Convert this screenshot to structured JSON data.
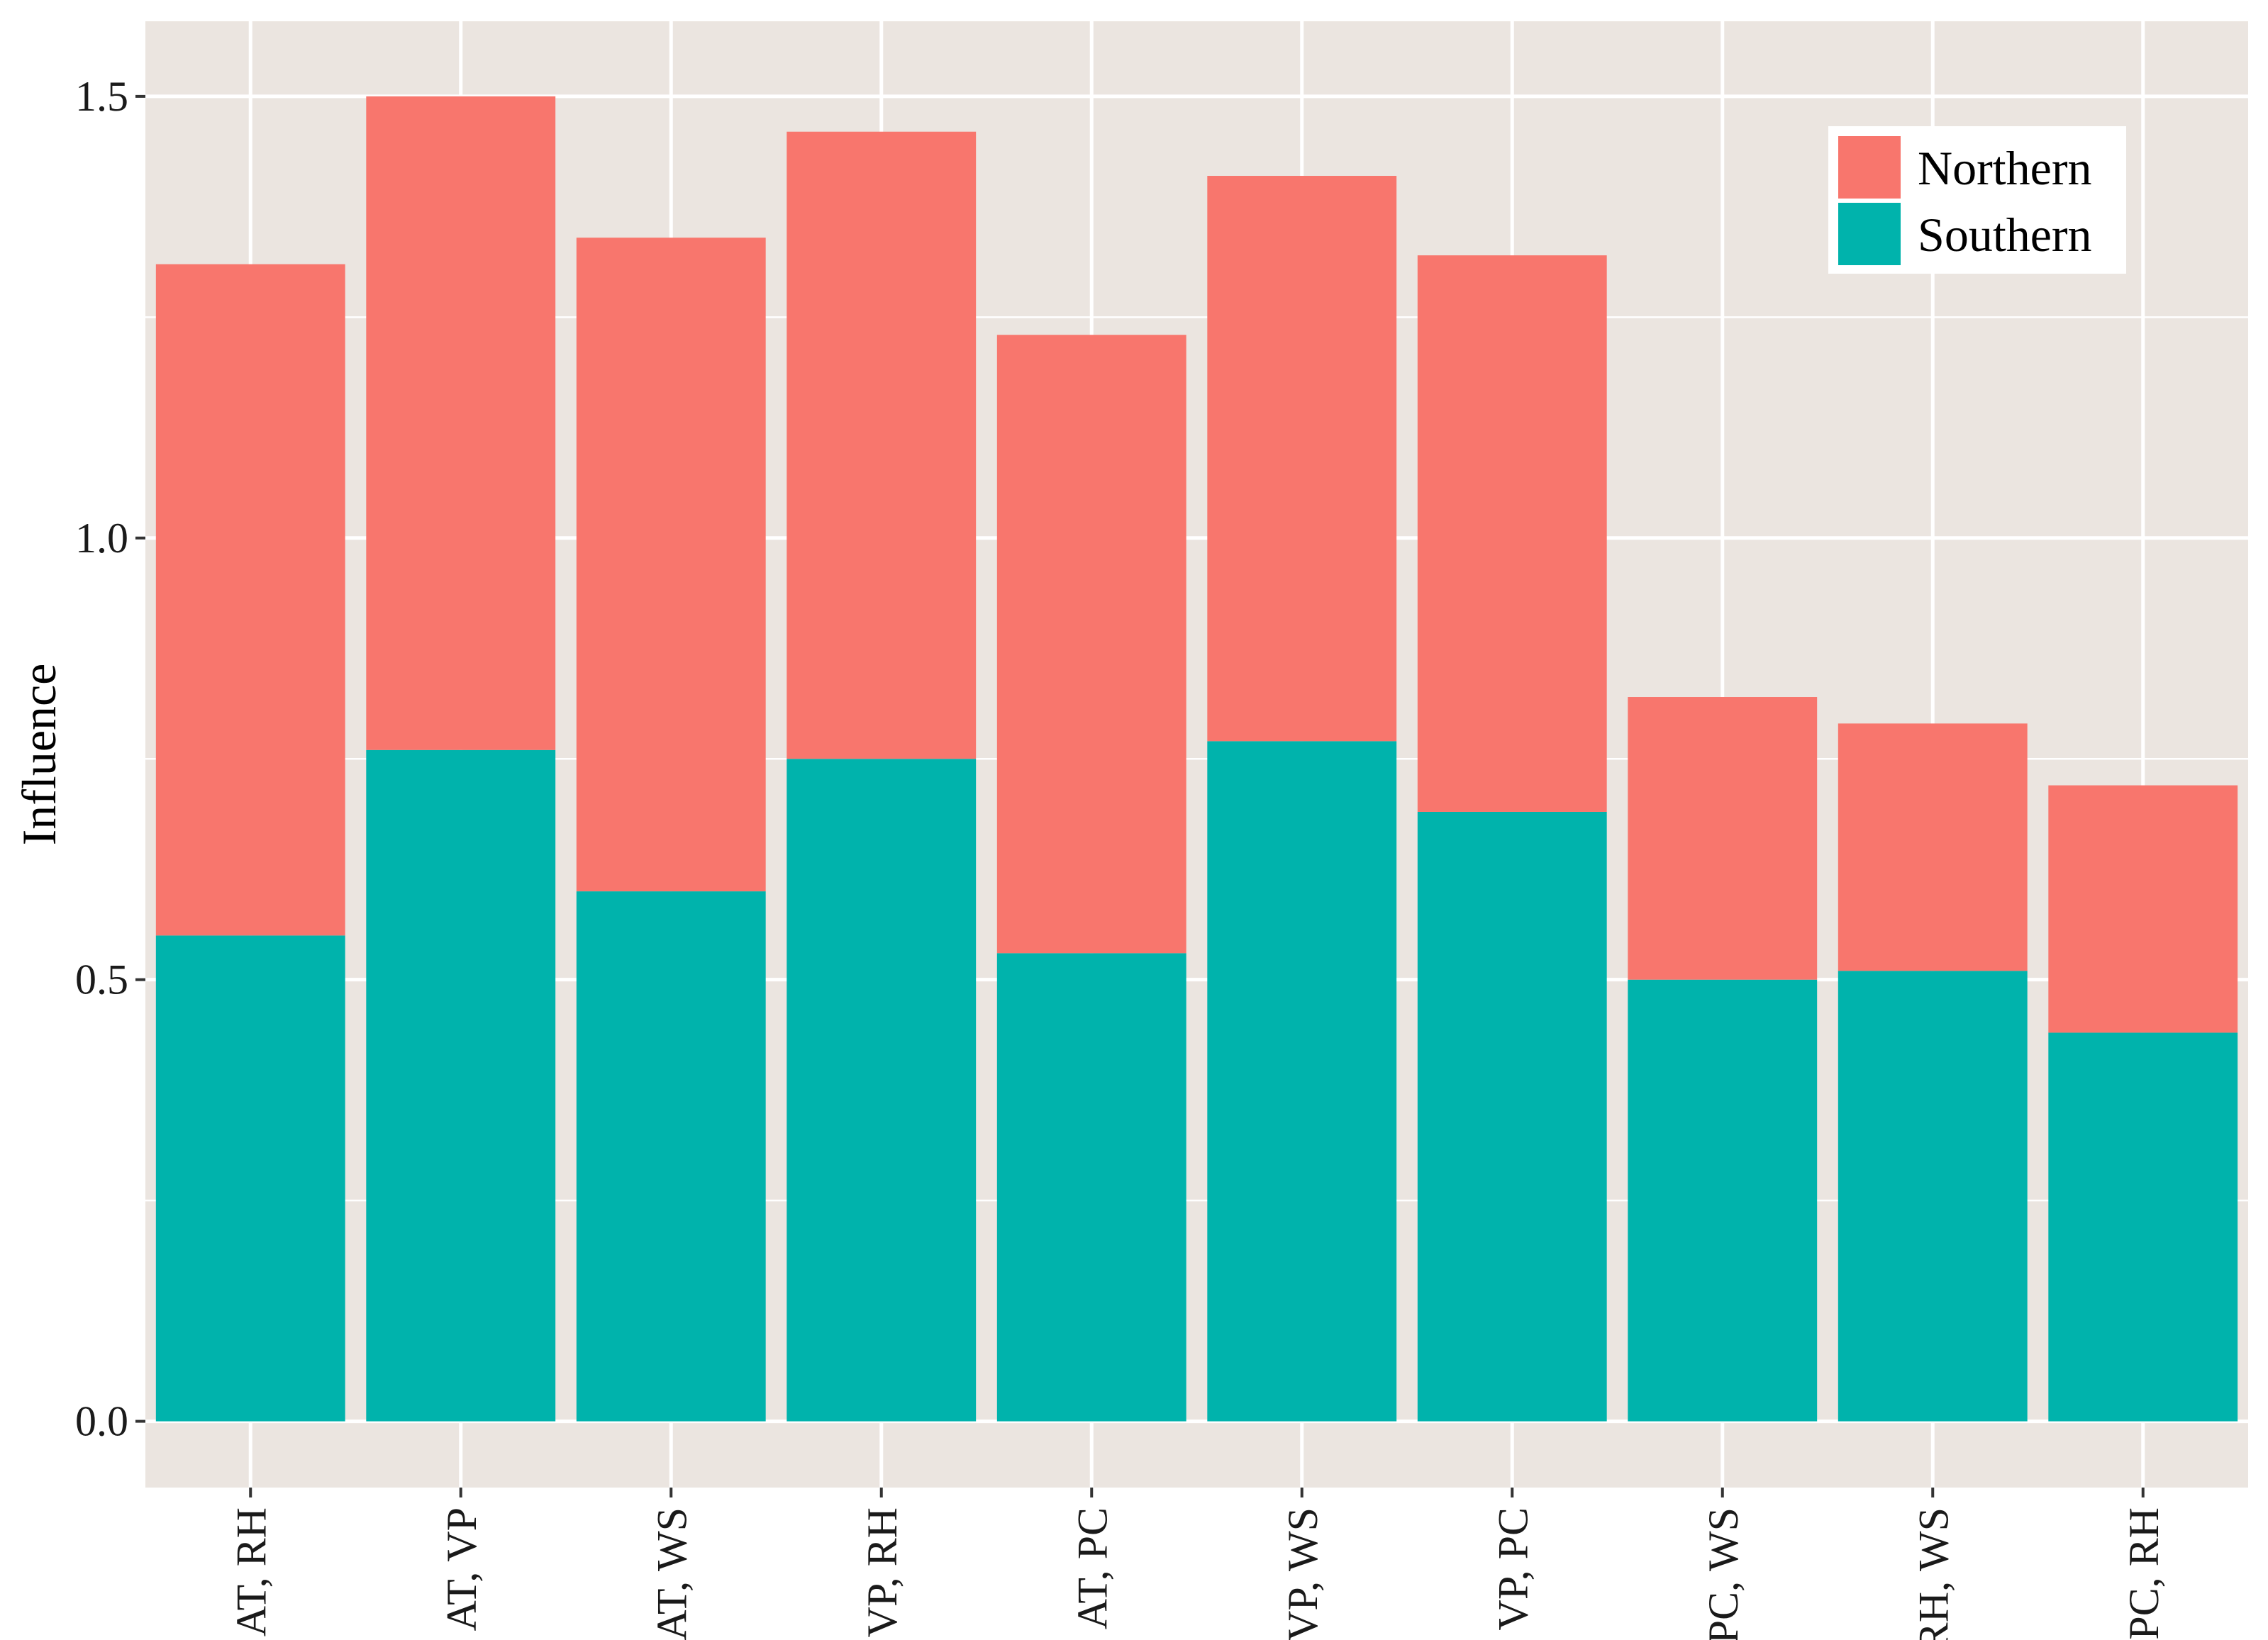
{
  "chart_data": {
    "type": "bar",
    "stacked": true,
    "title": "",
    "xlabel": "",
    "ylabel": "Influence",
    "ylim": [
      -0.075,
      1.585
    ],
    "y_ticks": [
      "0.0",
      "0.5",
      "1.0",
      "1.5"
    ],
    "categories": [
      "AT, RH",
      "AT, VP",
      "AT, WS",
      "VP, RH",
      "AT, PC",
      "VP, WS",
      "VP, PC",
      "PC, WS",
      "RH, WS",
      "PC, RH"
    ],
    "series": [
      {
        "name": "Southern",
        "color": "#00b3ac",
        "values": [
          0.55,
          0.76,
          0.6,
          0.75,
          0.53,
          0.77,
          0.69,
          0.5,
          0.51,
          0.44
        ]
      },
      {
        "name": "Northern",
        "color": "#f8766d",
        "values": [
          0.76,
          0.74,
          0.74,
          0.71,
          0.7,
          0.64,
          0.63,
          0.32,
          0.28,
          0.28
        ]
      }
    ],
    "totals": [
      1.31,
      1.5,
      1.34,
      1.46,
      1.23,
      1.41,
      1.32,
      0.82,
      0.79,
      0.72
    ],
    "legend": {
      "position": "top-right",
      "entries": [
        {
          "label": "Northern",
          "color": "#f8766d"
        },
        {
          "label": "Southern",
          "color": "#00b3ac"
        }
      ]
    },
    "grid": true
  }
}
